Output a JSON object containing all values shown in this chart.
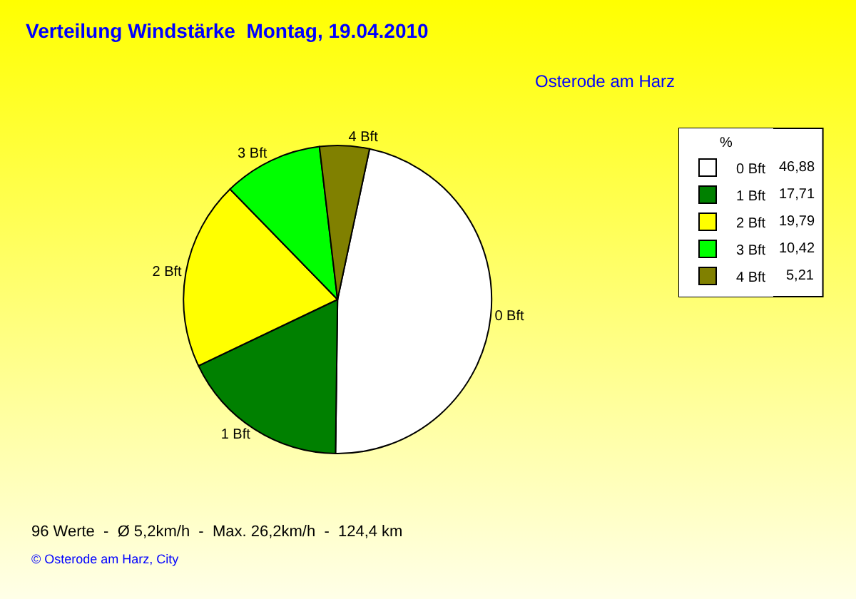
{
  "chart_data": {
    "type": "pie",
    "title": "Verteilung Windstärke  Montag, 19.04.2010",
    "subtitle": "Osterode am Harz",
    "categories": [
      "0 Bft",
      "1 Bft",
      "2 Bft",
      "3 Bft",
      "4 Bft"
    ],
    "values": [
      46.88,
      17.71,
      19.79,
      10.42,
      5.21
    ],
    "value_labels": [
      "46,88",
      "17,71",
      "19,79",
      "10,42",
      "5,21"
    ],
    "colors": [
      "#ffffff",
      "#008000",
      "#ffff00",
      "#00ff00",
      "#808000"
    ],
    "legend": "top right",
    "legend_title": "%",
    "annotations": [
      "96 Werte  -  Ø 5,2km/h  -  Max. 26,2km/h  -  124,4 km",
      "© Osterode am Harz, City"
    ]
  }
}
